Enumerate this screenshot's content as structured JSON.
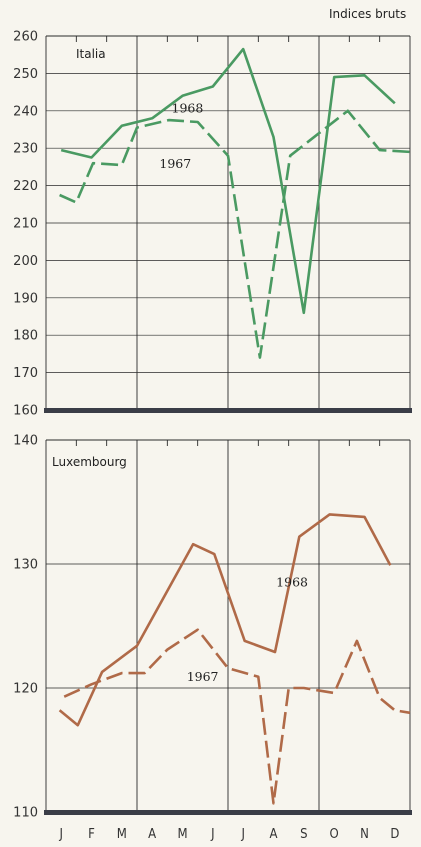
{
  "header": {
    "units": "Indices bruts"
  },
  "chart_data": [
    {
      "type": "line",
      "title": "Italia",
      "categories": [
        "J",
        "F",
        "M",
        "A",
        "M",
        "J",
        "J",
        "A",
        "S",
        "O",
        "N",
        "D"
      ],
      "ylim": [
        160,
        260
      ],
      "yticks": [
        160,
        170,
        180,
        190,
        200,
        210,
        220,
        230,
        240,
        250,
        260
      ],
      "color": "#4a9a62",
      "series": [
        {
          "name": "1968",
          "style": "solid",
          "x": [
            0,
            1,
            2,
            3,
            4,
            5,
            6,
            7,
            8,
            9,
            10,
            11
          ],
          "values": [
            229.5,
            227.5,
            236,
            238,
            244,
            246.5,
            256.5,
            233,
            186,
            249,
            249.5,
            242
          ]
        },
        {
          "name": "1967",
          "style": "dashed",
          "x": [
            -0.05,
            0.5,
            1.05,
            2,
            2.5,
            3.55,
            4.5,
            5.5,
            6.55,
            7.55,
            8.5,
            9.45,
            10.5,
            11.5
          ],
          "values": [
            217.5,
            215.5,
            226,
            225.5,
            235.5,
            237.5,
            237,
            228,
            174,
            228,
            234,
            240,
            229.5,
            229
          ]
        }
      ],
      "annotations": [
        {
          "text": "1968",
          "x": 4.1,
          "y": 240.6
        },
        {
          "text": "1967",
          "x": 3.7,
          "y": 225.8
        }
      ],
      "grid": "vertical quarter dividers and horizontal gridlines"
    },
    {
      "type": "line",
      "title": "Luxembourg",
      "categories": [
        "J",
        "F",
        "M",
        "A",
        "M",
        "J",
        "J",
        "A",
        "S",
        "O",
        "N",
        "D"
      ],
      "ylim": [
        110,
        140
      ],
      "yticks": [
        110,
        120,
        130,
        140
      ],
      "color": "#b06a48",
      "series": [
        {
          "name": "1968",
          "style": "solid",
          "x": [
            -0.05,
            0.55,
            1.35,
            2.5,
            4.35,
            5.05,
            6.05,
            7.05,
            7.85,
            8.85,
            10.0,
            10.85
          ],
          "values": [
            118.2,
            117.0,
            121.3,
            123.4,
            131.6,
            130.8,
            123.8,
            122.9,
            132.2,
            134.0,
            133.8,
            129.9
          ]
        },
        {
          "name": "1967",
          "style": "dashed",
          "x": [
            0.1,
            1.0,
            2.0,
            2.75,
            3.5,
            4.5,
            5.5,
            6.5,
            7.0,
            7.5,
            8.0,
            9.0,
            9.75,
            10.5,
            11.0,
            11.5
          ],
          "values": [
            119.3,
            120.3,
            121.2,
            121.2,
            123.1,
            124.7,
            121.6,
            120.9,
            110.7,
            120.0,
            120.0,
            119.6,
            123.8,
            119.2,
            118.2,
            118.0
          ]
        }
      ],
      "annotations": [
        {
          "text": "1968",
          "x": 7.55,
          "y": 128.5
        },
        {
          "text": "1967",
          "x": 4.6,
          "y": 120.9
        }
      ],
      "grid": "vertical quarter dividers and horizontal gridlines"
    }
  ]
}
